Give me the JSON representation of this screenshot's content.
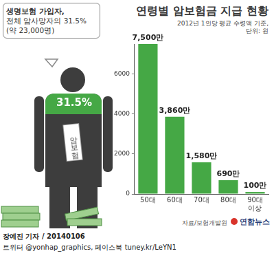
{
  "chart_data": {
    "type": "bar",
    "title": "연령별 암보험금 지급 현황",
    "subtitle": [
      "2012년 1인당 평균 수령액 기준,",
      "단위: 원"
    ],
    "categories": [
      "50대",
      "60대",
      "70대",
      "80대",
      "90대 이상"
    ],
    "values": [
      7500,
      3860,
      1580,
      690,
      100
    ],
    "value_labels": [
      "7,500만",
      "3,860만",
      "1,580만",
      "690만",
      "100만"
    ],
    "color": "#45a845",
    "ylim": [
      0,
      7500
    ],
    "yticks": [
      0,
      2000,
      4000,
      6000
    ],
    "grid": false,
    "data_labels": true,
    "callout": [
      "생명보험 가입자,",
      "전체 암사망자의 31.5%",
      "(약 23,000명)"
    ],
    "figure_label": "31.5%",
    "figure_tag": "암보험",
    "source": "자료/보험개발원",
    "credit": "연합뉴스",
    "footer": [
      "장예진 기자 / 20140106",
      "트위터 @yonhap_graphics, 페이스북 tuney.kr/LeYN1"
    ]
  }
}
